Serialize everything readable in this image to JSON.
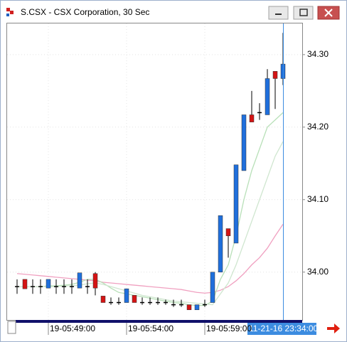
{
  "window_title": "S.CSX - CSX Corporation, 30 Sec",
  "chart_data": {
    "type": "candlestick",
    "categories": [
      null,
      null,
      null,
      null,
      "19-05:49:00",
      null,
      null,
      null,
      null,
      null,
      null,
      null,
      null,
      null,
      "19-05:54:00",
      null,
      null,
      null,
      null,
      null,
      null,
      null,
      null,
      null,
      "19-05:59:00",
      null,
      null,
      null,
      null,
      null,
      null,
      null,
      null,
      null,
      null
    ],
    "cursor_label": "11-21-16 23:34:00",
    "open": [
      33.98,
      33.99,
      33.98,
      33.98,
      33.978,
      33.98,
      33.98,
      33.98,
      33.978,
      33.98,
      33.998,
      33.967,
      33.958,
      33.958,
      33.958,
      33.968,
      33.958,
      33.958,
      33.958,
      33.958,
      33.955,
      33.955,
      33.955,
      33.948,
      33.955,
      33.958,
      34.0,
      34.06,
      34.04,
      34.14,
      34.217,
      34.22,
      34.217,
      34.277,
      34.267
    ],
    "high": [
      33.99,
      33.99,
      33.99,
      33.99,
      33.99,
      33.99,
      33.99,
      33.99,
      33.999,
      33.99,
      34.0,
      33.967,
      33.965,
      33.965,
      33.977,
      33.968,
      33.965,
      33.965,
      33.965,
      33.962,
      33.962,
      33.962,
      33.955,
      33.955,
      33.962,
      34.0,
      34.078,
      34.06,
      34.148,
      34.217,
      34.25,
      34.233,
      34.28,
      34.277,
      34.33
    ],
    "low": [
      33.97,
      33.977,
      33.97,
      33.97,
      33.978,
      33.97,
      33.97,
      33.97,
      33.978,
      33.97,
      33.968,
      33.958,
      33.955,
      33.955,
      33.958,
      33.958,
      33.955,
      33.955,
      33.955,
      33.955,
      33.952,
      33.952,
      33.948,
      33.948,
      33.952,
      33.958,
      34.0,
      34.02,
      34.04,
      34.14,
      34.207,
      34.21,
      34.217,
      34.225,
      34.258
    ],
    "close": [
      33.98,
      33.977,
      33.98,
      33.98,
      33.99,
      33.98,
      33.98,
      33.98,
      33.999,
      33.98,
      33.978,
      33.958,
      33.958,
      33.958,
      33.977,
      33.958,
      33.958,
      33.958,
      33.958,
      33.958,
      33.955,
      33.955,
      33.948,
      33.955,
      33.955,
      34.0,
      34.078,
      34.05,
      34.148,
      34.217,
      34.207,
      34.22,
      34.267,
      34.267,
      34.287
    ],
    "up_color": "#1f6fdc",
    "down_color": "#d41414",
    "flat_color": "#000000",
    "indicators": [
      {
        "color": "#f0a0c0",
        "values": [
          33.998,
          33.997,
          33.996,
          33.995,
          33.994,
          33.993,
          33.992,
          33.991,
          33.99,
          33.989,
          33.988,
          33.986,
          33.985,
          33.984,
          33.983,
          33.982,
          33.981,
          33.98,
          33.979,
          33.978,
          33.977,
          33.976,
          33.974,
          33.972,
          33.971,
          33.972,
          33.975,
          33.98,
          33.988,
          33.998,
          34.01,
          34.02,
          34.033,
          34.05,
          34.066
        ]
      },
      {
        "color": "#b8e0b8",
        "values": [
          33.98,
          33.98,
          33.98,
          33.98,
          33.981,
          33.981,
          33.982,
          33.983,
          33.986,
          33.99,
          33.99,
          33.985,
          33.978,
          33.972,
          33.97,
          33.968,
          33.966,
          33.964,
          33.962,
          33.96,
          33.958,
          33.957,
          33.955,
          33.954,
          33.954,
          33.96,
          33.99,
          34.01,
          34.05,
          34.1,
          34.14,
          34.17,
          34.2,
          34.21,
          34.22
        ]
      },
      {
        "color": "#cfe6cf",
        "values": [
          33.98,
          33.98,
          33.98,
          33.98,
          33.98,
          33.98,
          33.981,
          33.981,
          33.982,
          33.984,
          33.985,
          33.983,
          33.98,
          33.977,
          33.974,
          33.971,
          33.968,
          33.966,
          33.964,
          33.962,
          33.96,
          33.959,
          33.958,
          33.957,
          33.956,
          33.955,
          33.97,
          33.985,
          34.01,
          34.04,
          34.07,
          34.1,
          34.13,
          34.16,
          34.18
        ]
      }
    ],
    "ylim": [
      33.934,
      34.343
    ],
    "yticks": [
      {
        "value": 34.0,
        "label": "34.00"
      },
      {
        "value": 34.1,
        "label": "34.10"
      },
      {
        "value": 34.2,
        "label": "34.20"
      },
      {
        "value": 34.3,
        "label": "34.30"
      }
    ],
    "grid": true
  }
}
